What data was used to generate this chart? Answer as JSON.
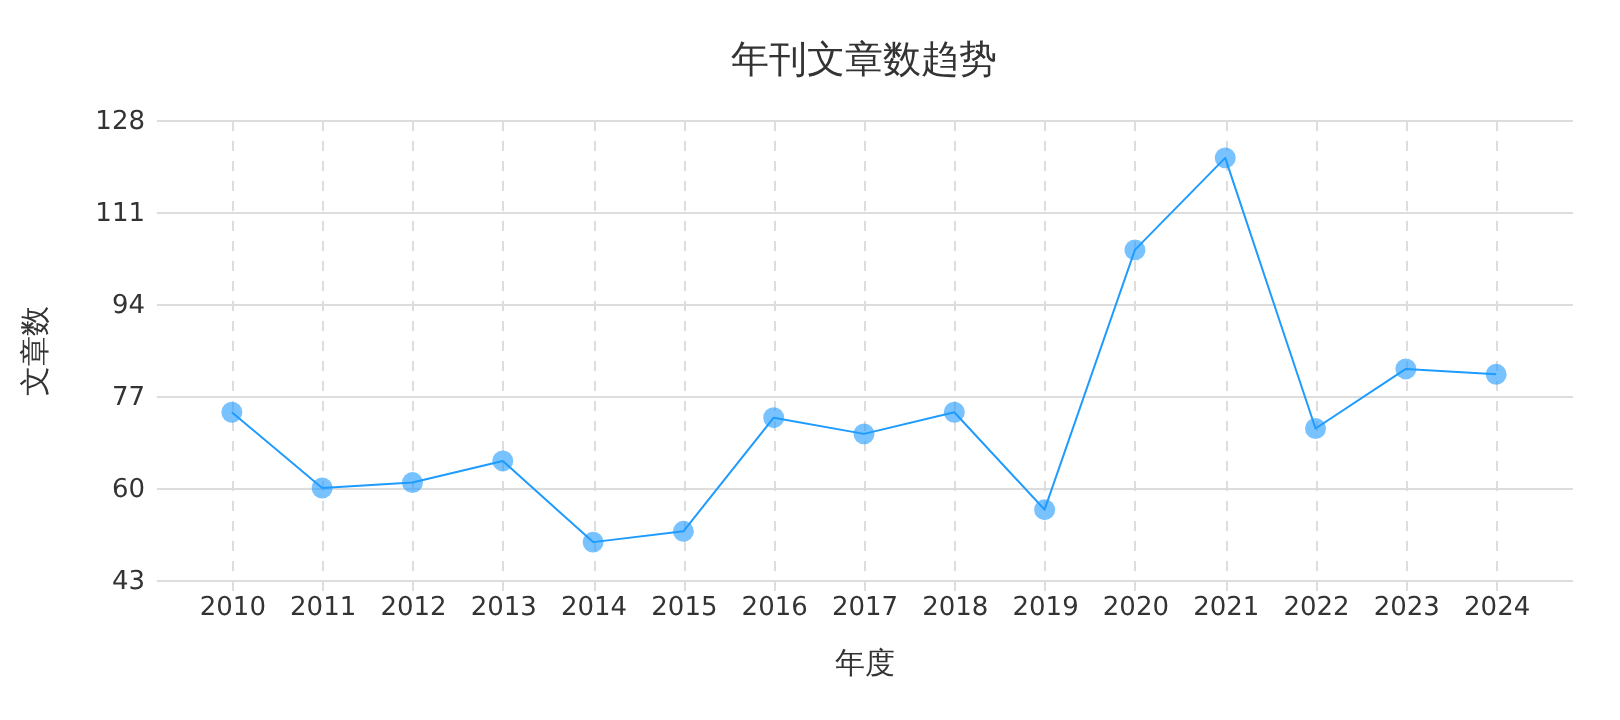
{
  "chart_data": {
    "type": "line",
    "title": "年刊文章数趋势",
    "xlabel": "年度",
    "ylabel": "文章数",
    "categories": [
      "2010",
      "2011",
      "2012",
      "2013",
      "2014",
      "2015",
      "2016",
      "2017",
      "2018",
      "2019",
      "2020",
      "2021",
      "2022",
      "2023",
      "2024"
    ],
    "series": [
      {
        "color": "#1e9bff",
        "values": [
          74,
          60,
          61,
          65,
          50,
          52,
          73,
          70,
          74,
          56,
          104,
          121,
          71,
          82,
          81
        ]
      }
    ],
    "ylim": [
      43,
      128
    ],
    "yticks": [
      43,
      60,
      77,
      94,
      111,
      128
    ],
    "grid": true,
    "marker": "circle",
    "line_style": "solid"
  }
}
